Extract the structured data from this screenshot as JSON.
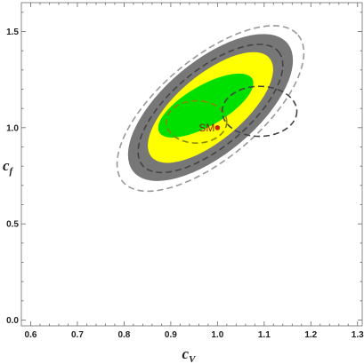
{
  "chart_data": {
    "type": "contour",
    "xlabel_main": "c",
    "xlabel_sub": "V",
    "ylabel_main": "c",
    "ylabel_sub": "f",
    "xlim": [
      0.58,
      1.31
    ],
    "ylim": [
      -0.03,
      1.65
    ],
    "xticks": [
      "0.6",
      "0.7",
      "0.8",
      "0.9",
      "1.0",
      "1.1",
      "1.2",
      "1.3"
    ],
    "yticks": [
      "0.0",
      "0.5",
      "1.0",
      "1.5"
    ],
    "grid": false,
    "filled_regions": [
      {
        "level": "outer",
        "color": "#777777",
        "center": [
          0.985,
          1.105
        ],
        "semi_axes": [
          0.215,
          0.24
        ],
        "rotation_deg": 40
      },
      {
        "level": "middle",
        "color": "#ffff00",
        "center": [
          0.985,
          1.105
        ],
        "semi_axes": [
          0.165,
          0.17
        ],
        "rotation_deg": 40
      },
      {
        "level": "inner",
        "color": "#00e000",
        "center": [
          0.975,
          1.115
        ],
        "semi_axes": [
          0.115,
          0.105
        ],
        "rotation_deg": 30
      }
    ],
    "dashed_contours": [
      {
        "color": "#999999",
        "center": [
          0.985,
          1.1
        ],
        "semi_axes": [
          0.245,
          0.26
        ],
        "rotation_deg": 40
      },
      {
        "color": "#444444",
        "center": [
          0.985,
          1.1
        ],
        "semi_axes": [
          0.19,
          0.2
        ],
        "rotation_deg": 40
      },
      {
        "color": "#888800",
        "center": [
          0.955,
          1.03
        ],
        "semi_axes": [
          0.065,
          0.11
        ],
        "rotation_deg": 0
      },
      {
        "color": "#444444",
        "center": [
          1.09,
          1.085
        ],
        "semi_axes": [
          0.08,
          0.13
        ],
        "rotation_deg": 0
      }
    ],
    "point": {
      "label": "SM",
      "x": 1.0,
      "y": 1.0,
      "color": "#cc2200"
    }
  }
}
